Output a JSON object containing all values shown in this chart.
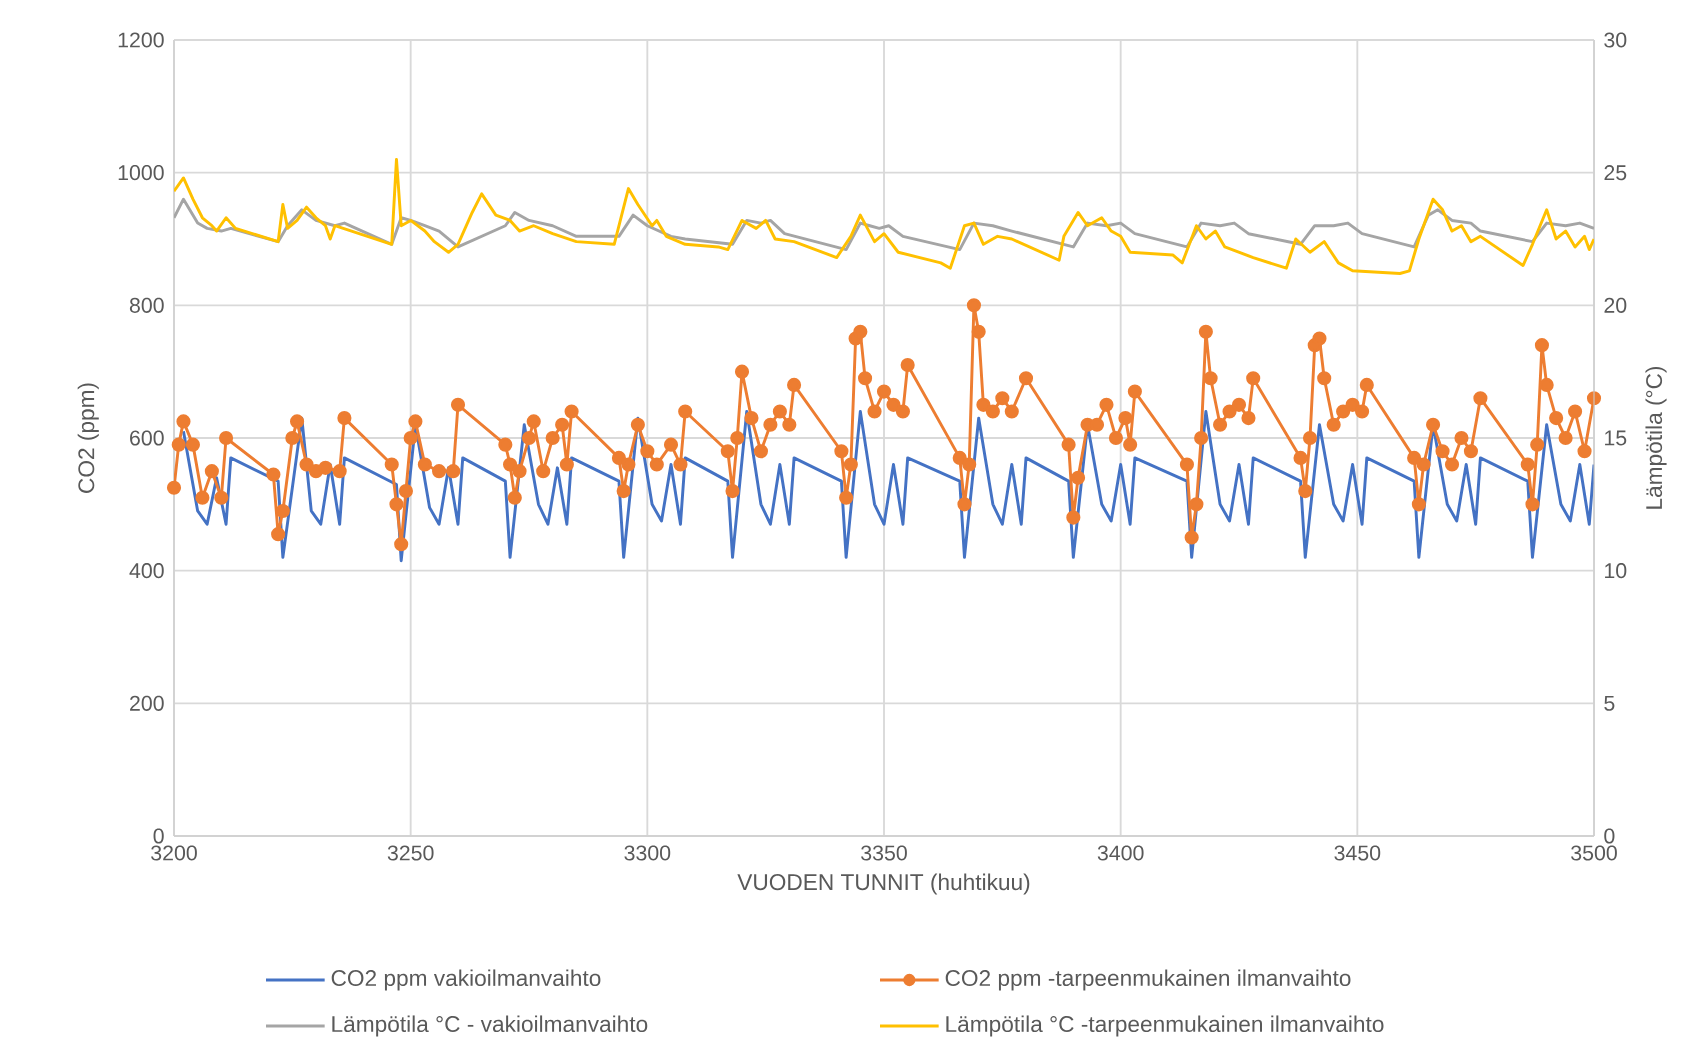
{
  "chart_data": {
    "type": "line",
    "xlabel": "VUODEN TUNNIT (huhtikuu)",
    "ylabel": "CO2 (ppm)",
    "y2label": "Lämpötila (°C)",
    "xlim": [
      3200,
      3500
    ],
    "xticks": [
      3200,
      3250,
      3300,
      3350,
      3400,
      3450,
      3500
    ],
    "ylim": [
      0,
      1200
    ],
    "yticks": [
      0,
      200,
      400,
      600,
      800,
      1000,
      1200
    ],
    "y2lim": [
      0,
      30
    ],
    "y2ticks": [
      0,
      5,
      10,
      15,
      20,
      25,
      30
    ],
    "grid": true,
    "legend": "bottom",
    "marker": "none",
    "line_style": "solid",
    "series": [
      {
        "name": "CO2 ppm vakioilmanvaihto",
        "color": "#4472c4",
        "x": [
          3202,
          3205,
          3207,
          3209,
          3211,
          3212,
          3222,
          3223,
          3227,
          3229,
          3231,
          3233,
          3235,
          3236,
          3247,
          3248,
          3251,
          3254,
          3256,
          3258,
          3260,
          3261,
          3270,
          3271,
          3274,
          3277,
          3279,
          3281,
          3283,
          3284,
          3294,
          3295,
          3298,
          3301,
          3303,
          3305,
          3307,
          3308,
          3317,
          3318,
          3321,
          3324,
          3326,
          3328,
          3330,
          3331,
          3341,
          3342,
          3345,
          3348,
          3350,
          3352,
          3354,
          3355,
          3366,
          3367,
          3370,
          3373,
          3375,
          3377,
          3379,
          3380,
          3389,
          3390,
          3393,
          3396,
          3398,
          3400,
          3402,
          3403,
          3414,
          3415,
          3418,
          3421,
          3423,
          3425,
          3427,
          3428,
          3438,
          3439,
          3442,
          3445,
          3447,
          3449,
          3451,
          3452,
          3462,
          3463,
          3466,
          3469,
          3471,
          3473,
          3475,
          3476,
          3486,
          3487,
          3490,
          3493,
          3495,
          3497,
          3499,
          3500
        ],
        "values": [
          610,
          490,
          470,
          540,
          470,
          570,
          535,
          420,
          630,
          490,
          470,
          560,
          470,
          570,
          530,
          415,
          620,
          495,
          470,
          555,
          470,
          570,
          535,
          420,
          620,
          500,
          470,
          555,
          470,
          570,
          535,
          420,
          630,
          500,
          475,
          560,
          470,
          570,
          535,
          420,
          640,
          500,
          470,
          560,
          470,
          570,
          535,
          420,
          640,
          500,
          470,
          560,
          470,
          570,
          535,
          420,
          630,
          500,
          470,
          560,
          470,
          570,
          535,
          420,
          620,
          500,
          475,
          560,
          470,
          570,
          535,
          420,
          640,
          500,
          475,
          560,
          470,
          570,
          535,
          420,
          620,
          500,
          475,
          560,
          470,
          570,
          535,
          420,
          620,
          500,
          475,
          560,
          470,
          570,
          535,
          420,
          620,
          500,
          475,
          560,
          470,
          560
        ]
      },
      {
        "name": "CO2 ppm -tarpeenmukainen ilmanvaihto",
        "color": "#ed7d31",
        "marker": "circle",
        "x": [
          3200,
          3201,
          3202,
          3204,
          3206,
          3208,
          3210,
          3211,
          3221,
          3222,
          3223,
          3225,
          3226,
          3228,
          3230,
          3232,
          3235,
          3236,
          3246,
          3247,
          3248,
          3249,
          3250,
          3251,
          3253,
          3256,
          3259,
          3260,
          3270,
          3271,
          3272,
          3273,
          3275,
          3276,
          3278,
          3280,
          3282,
          3283,
          3284,
          3294,
          3295,
          3296,
          3298,
          3300,
          3302,
          3305,
          3307,
          3308,
          3317,
          3318,
          3319,
          3320,
          3322,
          3324,
          3326,
          3328,
          3330,
          3331,
          3341,
          3342,
          3343,
          3344,
          3345,
          3346,
          3348,
          3350,
          3352,
          3354,
          3355,
          3366,
          3367,
          3368,
          3369,
          3370,
          3371,
          3373,
          3375,
          3377,
          3380,
          3389,
          3390,
          3391,
          3393,
          3395,
          3397,
          3399,
          3401,
          3402,
          3403,
          3414,
          3415,
          3416,
          3417,
          3418,
          3419,
          3421,
          3423,
          3425,
          3427,
          3428,
          3438,
          3439,
          3440,
          3441,
          3442,
          3443,
          3445,
          3447,
          3449,
          3451,
          3452,
          3462,
          3463,
          3464,
          3466,
          3468,
          3470,
          3472,
          3474,
          3476,
          3486,
          3487,
          3488,
          3489,
          3490,
          3492,
          3494,
          3496,
          3498,
          3500
        ],
        "values": [
          525,
          590,
          625,
          590,
          510,
          550,
          510,
          600,
          545,
          455,
          490,
          600,
          625,
          560,
          550,
          555,
          550,
          630,
          560,
          500,
          440,
          520,
          600,
          625,
          560,
          550,
          550,
          650,
          590,
          560,
          510,
          550,
          600,
          625,
          550,
          600,
          620,
          560,
          640,
          570,
          520,
          560,
          620,
          580,
          560,
          590,
          560,
          640,
          580,
          520,
          600,
          700,
          630,
          580,
          620,
          640,
          620,
          680,
          580,
          510,
          560,
          750,
          760,
          690,
          640,
          670,
          650,
          640,
          710,
          570,
          500,
          560,
          800,
          760,
          650,
          640,
          660,
          640,
          690,
          590,
          480,
          540,
          620,
          620,
          650,
          600,
          630,
          590,
          670,
          560,
          450,
          500,
          600,
          760,
          690,
          620,
          640,
          650,
          630,
          690,
          570,
          520,
          600,
          740,
          750,
          690,
          620,
          640,
          650,
          640,
          680,
          570,
          500,
          560,
          620,
          580,
          560,
          600,
          580,
          660,
          560,
          500,
          590,
          740,
          680,
          630,
          600,
          640,
          580,
          660
        ]
      },
      {
        "name": "Lämpötila °C - vakioilmanvaihto",
        "color": "#a5a5a5",
        "axis": "y2",
        "x": [
          3200,
          3202,
          3205,
          3207,
          3210,
          3212,
          3222,
          3224,
          3227,
          3230,
          3234,
          3236,
          3246,
          3248,
          3250,
          3253,
          3256,
          3260,
          3270,
          3272,
          3275,
          3280,
          3285,
          3294,
          3297,
          3300,
          3305,
          3308,
          3318,
          3321,
          3324,
          3326,
          3329,
          3342,
          3345,
          3347,
          3349,
          3351,
          3354,
          3366,
          3369,
          3373,
          3377,
          3390,
          3393,
          3397,
          3400,
          3403,
          3414,
          3417,
          3421,
          3424,
          3427,
          3438,
          3441,
          3445,
          3448,
          3451,
          3462,
          3465,
          3467,
          3470,
          3474,
          3476,
          3487,
          3490,
          3494,
          3497,
          3500
        ],
        "values": [
          23.3,
          24.0,
          23.1,
          22.9,
          22.8,
          22.9,
          22.4,
          23.0,
          23.6,
          23.2,
          23.0,
          23.1,
          22.3,
          23.3,
          23.2,
          23.0,
          22.8,
          22.2,
          23.0,
          23.5,
          23.2,
          23.0,
          22.6,
          22.6,
          23.4,
          23.0,
          22.6,
          22.5,
          22.3,
          23.2,
          23.1,
          23.2,
          22.7,
          22.1,
          23.1,
          23.0,
          22.9,
          23.0,
          22.6,
          22.1,
          23.1,
          23.0,
          22.8,
          22.2,
          23.1,
          23.0,
          23.1,
          22.7,
          22.2,
          23.1,
          23.0,
          23.1,
          22.7,
          22.3,
          23.0,
          23.0,
          23.1,
          22.7,
          22.2,
          23.4,
          23.6,
          23.2,
          23.1,
          22.8,
          22.4,
          23.1,
          23.0,
          23.1,
          22.9
        ]
      },
      {
        "name": "Lämpötila °C -tarpeenmukainen ilmanvaihto",
        "color": "#ffc000",
        "axis": "y2",
        "x": [
          3200,
          3202,
          3204,
          3206,
          3208,
          3209,
          3211,
          3213,
          3222,
          3223,
          3224,
          3226,
          3228,
          3230,
          3232,
          3233,
          3234,
          3246,
          3247,
          3248,
          3250,
          3253,
          3255,
          3258,
          3260,
          3263,
          3265,
          3268,
          3271,
          3273,
          3276,
          3280,
          3285,
          3293,
          3296,
          3298,
          3301,
          3302,
          3304,
          3308,
          3315,
          3317,
          3320,
          3323,
          3325,
          3327,
          3331,
          3340,
          3343,
          3345,
          3348,
          3350,
          3353,
          3362,
          3364,
          3367,
          3369,
          3371,
          3374,
          3377,
          3387,
          3388,
          3391,
          3393,
          3396,
          3398,
          3400,
          3402,
          3411,
          3413,
          3416,
          3418,
          3420,
          3422,
          3428,
          3435,
          3437,
          3440,
          3443,
          3446,
          3449,
          3459,
          3461,
          3463,
          3466,
          3468,
          3470,
          3472,
          3474,
          3476,
          3485,
          3487,
          3490,
          3492,
          3494,
          3496,
          3498,
          3499,
          3500
        ],
        "values": [
          24.3,
          24.8,
          24.0,
          23.3,
          23.0,
          22.8,
          23.3,
          22.9,
          22.4,
          23.8,
          22.9,
          23.2,
          23.7,
          23.3,
          23.0,
          22.5,
          23.0,
          22.3,
          25.5,
          23.0,
          23.2,
          22.8,
          22.4,
          22.0,
          22.3,
          23.5,
          24.2,
          23.4,
          23.2,
          22.8,
          23.0,
          22.7,
          22.4,
          22.3,
          24.4,
          23.8,
          23.0,
          23.2,
          22.6,
          22.3,
          22.2,
          22.1,
          23.2,
          22.9,
          23.2,
          22.5,
          22.4,
          21.8,
          22.6,
          23.4,
          22.4,
          22.7,
          22.0,
          21.6,
          21.4,
          23.0,
          23.1,
          22.3,
          22.6,
          22.5,
          21.7,
          22.6,
          23.5,
          23.0,
          23.3,
          22.8,
          22.6,
          22.0,
          21.9,
          21.6,
          23.0,
          22.5,
          22.8,
          22.2,
          21.8,
          21.4,
          22.5,
          22.0,
          22.4,
          21.6,
          21.3,
          21.2,
          21.3,
          22.5,
          24.0,
          23.6,
          22.8,
          23.0,
          22.4,
          22.6,
          21.5,
          22.3,
          23.6,
          22.5,
          22.8,
          22.2,
          22.6,
          22.1,
          22.5
        ]
      }
    ]
  }
}
